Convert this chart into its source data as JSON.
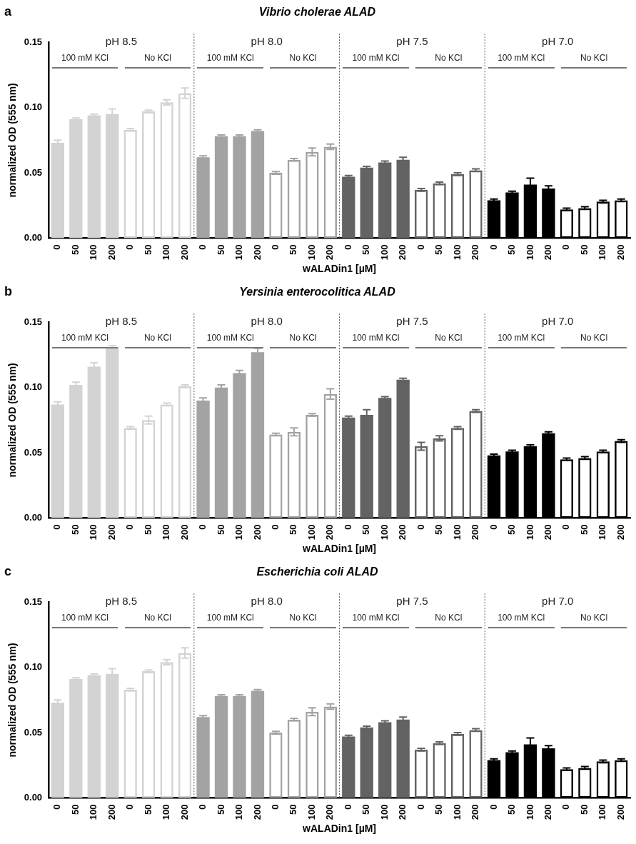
{
  "chart_data": [
    {
      "type": "bar",
      "title": "Vibrio cholerae ALAD",
      "xlabel": "wALADin1 [µM]",
      "ylabel": "normalized OD (555 nm)",
      "annotations": [
        "a",
        "pH 8.5",
        "100 mM KCl",
        "No KCl",
        "pH 8.0",
        "100 mM KCl",
        "No KCl",
        "pH 7.5",
        "100 mM KCl",
        "No KCl",
        "pH 7.0",
        "100 mM KCl",
        "No KCl"
      ],
      "categories": [
        "0",
        "50",
        "100",
        "200",
        "0",
        "50",
        "100",
        "200",
        "0",
        "50",
        "100",
        "200",
        "0",
        "50",
        "100",
        "200",
        "0",
        "50",
        "100",
        "200",
        "0",
        "50",
        "100",
        "200",
        "0",
        "50",
        "100",
        "200",
        "0",
        "50",
        "100",
        "200"
      ],
      "ylim": [
        0,
        0.15
      ],
      "yticks": [
        {
          "value": 0,
          "label": "0.00"
        },
        {
          "value": 0.05,
          "label": "0.05"
        },
        {
          "value": 0.1,
          "label": "0.10"
        },
        {
          "value": 0.15,
          "label": "0.15"
        }
      ],
      "grid": false,
      "legend": false,
      "series": [
        {
          "color": "#d3d3d3",
          "values": [
            0.073,
            0.091,
            0.094,
            0.095,
            null,
            null,
            null,
            null,
            null,
            null,
            null,
            null,
            null,
            null,
            null,
            null,
            null,
            null,
            null,
            null,
            null,
            null,
            null,
            null,
            null,
            null,
            null,
            null,
            null,
            null,
            null,
            null
          ],
          "errors": [
            0.002,
            0.001,
            0.001,
            0.004,
            null,
            null,
            null,
            null,
            null,
            null,
            null,
            null,
            null,
            null,
            null,
            null,
            null,
            null,
            null,
            null,
            null,
            null,
            null,
            null,
            null,
            null,
            null,
            null,
            null,
            null,
            null,
            null
          ]
        },
        {
          "color": "#d3d3d3",
          "values": [
            null,
            null,
            null,
            null,
            0.083,
            0.097,
            0.104,
            0.111,
            null,
            null,
            null,
            null,
            null,
            null,
            null,
            null,
            null,
            null,
            null,
            null,
            null,
            null,
            null,
            null,
            null,
            null,
            null,
            null,
            null,
            null,
            null,
            null
          ],
          "errors": [
            null,
            null,
            null,
            null,
            0.001,
            0.001,
            0.002,
            0.004,
            null,
            null,
            null,
            null,
            null,
            null,
            null,
            null,
            null,
            null,
            null,
            null,
            null,
            null,
            null,
            null,
            null,
            null,
            null,
            null,
            null,
            null,
            null,
            null
          ]
        },
        {
          "color": "#a3a3a5",
          "values": [
            null,
            null,
            null,
            null,
            null,
            null,
            null,
            null,
            0.062,
            0.078,
            0.078,
            0.082,
            null,
            null,
            null,
            null,
            null,
            null,
            null,
            null,
            null,
            null,
            null,
            null,
            null,
            null,
            null,
            null,
            null,
            null,
            null,
            null
          ],
          "errors": [
            null,
            null,
            null,
            null,
            null,
            null,
            null,
            null,
            0.001,
            0.001,
            0.001,
            0.001,
            null,
            null,
            null,
            null,
            null,
            null,
            null,
            null,
            null,
            null,
            null,
            null,
            null,
            null,
            null,
            null,
            null,
            null,
            null,
            null
          ]
        },
        {
          "color": "#a3a3a5",
          "values": [
            null,
            null,
            null,
            null,
            null,
            null,
            null,
            null,
            null,
            null,
            null,
            null,
            0.05,
            0.06,
            0.066,
            0.07,
            null,
            null,
            null,
            null,
            null,
            null,
            null,
            null,
            null,
            null,
            null,
            null,
            null,
            null,
            null,
            null
          ],
          "errors": [
            null,
            null,
            null,
            null,
            null,
            null,
            null,
            null,
            null,
            null,
            null,
            null,
            0.001,
            0.001,
            0.003,
            0.002,
            null,
            null,
            null,
            null,
            null,
            null,
            null,
            null,
            null,
            null,
            null,
            null,
            null,
            null,
            null,
            null
          ]
        },
        {
          "color": "#636363",
          "values": [
            null,
            null,
            null,
            null,
            null,
            null,
            null,
            null,
            null,
            null,
            null,
            null,
            null,
            null,
            null,
            null,
            0.047,
            0.054,
            0.058,
            0.06,
            null,
            null,
            null,
            null,
            null,
            null,
            null,
            null,
            null,
            null,
            null,
            null
          ],
          "errors": [
            null,
            null,
            null,
            null,
            null,
            null,
            null,
            null,
            null,
            null,
            null,
            null,
            null,
            null,
            null,
            null,
            0.001,
            0.001,
            0.001,
            0.002,
            null,
            null,
            null,
            null,
            null,
            null,
            null,
            null,
            null,
            null,
            null,
            null
          ]
        },
        {
          "color": "#636363",
          "values": [
            null,
            null,
            null,
            null,
            null,
            null,
            null,
            null,
            null,
            null,
            null,
            null,
            null,
            null,
            null,
            null,
            null,
            null,
            null,
            null,
            0.037,
            0.042,
            0.049,
            0.052,
            null,
            null,
            null,
            null,
            null,
            null,
            null,
            null
          ],
          "errors": [
            null,
            null,
            null,
            null,
            null,
            null,
            null,
            null,
            null,
            null,
            null,
            null,
            null,
            null,
            null,
            null,
            null,
            null,
            null,
            null,
            0.001,
            0.001,
            0.001,
            0.001,
            null,
            null,
            null,
            null,
            null,
            null,
            null,
            null
          ]
        },
        {
          "color": "#000000",
          "values": [
            null,
            null,
            null,
            null,
            null,
            null,
            null,
            null,
            null,
            null,
            null,
            null,
            null,
            null,
            null,
            null,
            null,
            null,
            null,
            null,
            null,
            null,
            null,
            null,
            0.029,
            0.035,
            0.041,
            0.038,
            null,
            null,
            null,
            null
          ],
          "errors": [
            null,
            null,
            null,
            null,
            null,
            null,
            null,
            null,
            null,
            null,
            null,
            null,
            null,
            null,
            null,
            null,
            null,
            null,
            null,
            null,
            null,
            null,
            null,
            null,
            0.001,
            0.001,
            0.005,
            0.002,
            null,
            null,
            null,
            null
          ]
        },
        {
          "color": "#000000",
          "values": [
            null,
            null,
            null,
            null,
            null,
            null,
            null,
            null,
            null,
            null,
            null,
            null,
            null,
            null,
            null,
            null,
            null,
            null,
            null,
            null,
            null,
            null,
            null,
            null,
            null,
            null,
            null,
            null,
            0.022,
            0.023,
            0.028,
            0.029
          ],
          "errors": [
            null,
            null,
            null,
            null,
            null,
            null,
            null,
            null,
            null,
            null,
            null,
            null,
            null,
            null,
            null,
            null,
            null,
            null,
            null,
            null,
            null,
            null,
            null,
            null,
            null,
            null,
            null,
            null,
            0.001,
            0.001,
            0.001,
            0.001
          ]
        }
      ]
    },
    {
      "type": "bar",
      "title": "Yersinia enterocolitica ALAD",
      "xlabel": "wALADin1 [µM]",
      "ylabel": "normalized OD (555 nm)",
      "annotations": [
        "b",
        "pH 8.5",
        "100 mM KCl",
        "No KCl",
        "pH 8.0",
        "100 mM KCl",
        "No KCl",
        "pH 7.5",
        "100 mM KCl",
        "No KCl",
        "pH 7.0",
        "100 mM KCl",
        "No KCl"
      ],
      "categories": [
        "0",
        "50",
        "100",
        "200",
        "0",
        "50",
        "100",
        "200",
        "0",
        "50",
        "100",
        "200",
        "0",
        "50",
        "100",
        "200",
        "0",
        "50",
        "100",
        "200",
        "0",
        "50",
        "100",
        "200",
        "0",
        "50",
        "100",
        "200",
        "0",
        "50",
        "100",
        "200"
      ],
      "ylim": [
        0,
        0.15
      ],
      "yticks": [
        {
          "value": 0,
          "label": "0.00"
        },
        {
          "value": 0.05,
          "label": "0.05"
        },
        {
          "value": 0.1,
          "label": "0.10"
        },
        {
          "value": 0.15,
          "label": "0.15"
        }
      ],
      "grid": false,
      "legend": false,
      "series": [
        {
          "color": "#d3d3d3",
          "values": [
            0.087,
            0.102,
            0.116,
            0.131,
            null,
            null,
            null,
            null,
            null,
            null,
            null,
            null,
            null,
            null,
            null,
            null,
            null,
            null,
            null,
            null,
            null,
            null,
            null,
            null,
            null,
            null,
            null,
            null,
            null,
            null,
            null,
            null
          ],
          "errors": [
            0.002,
            0.002,
            0.003,
            0.001,
            null,
            null,
            null,
            null,
            null,
            null,
            null,
            null,
            null,
            null,
            null,
            null,
            null,
            null,
            null,
            null,
            null,
            null,
            null,
            null,
            null,
            null,
            null,
            null,
            null,
            null,
            null,
            null
          ]
        },
        {
          "color": "#d3d3d3",
          "values": [
            null,
            null,
            null,
            null,
            0.069,
            0.075,
            0.087,
            0.101,
            null,
            null,
            null,
            null,
            null,
            null,
            null,
            null,
            null,
            null,
            null,
            null,
            null,
            null,
            null,
            null,
            null,
            null,
            null,
            null,
            null,
            null,
            null,
            null
          ],
          "errors": [
            null,
            null,
            null,
            null,
            0.001,
            0.003,
            0.001,
            0.001,
            null,
            null,
            null,
            null,
            null,
            null,
            null,
            null,
            null,
            null,
            null,
            null,
            null,
            null,
            null,
            null,
            null,
            null,
            null,
            null,
            null,
            null,
            null,
            null
          ]
        },
        {
          "color": "#a3a3a5",
          "values": [
            null,
            null,
            null,
            null,
            null,
            null,
            null,
            null,
            0.09,
            0.1,
            0.111,
            0.127,
            null,
            null,
            null,
            null,
            null,
            null,
            null,
            null,
            null,
            null,
            null,
            null,
            null,
            null,
            null,
            null,
            null,
            null,
            null,
            null
          ],
          "errors": [
            null,
            null,
            null,
            null,
            null,
            null,
            null,
            null,
            0.002,
            0.002,
            0.002,
            0.003,
            null,
            null,
            null,
            null,
            null,
            null,
            null,
            null,
            null,
            null,
            null,
            null,
            null,
            null,
            null,
            null,
            null,
            null,
            null,
            null
          ]
        },
        {
          "color": "#a3a3a5",
          "values": [
            null,
            null,
            null,
            null,
            null,
            null,
            null,
            null,
            null,
            null,
            null,
            null,
            0.064,
            0.066,
            0.079,
            0.095,
            null,
            null,
            null,
            null,
            null,
            null,
            null,
            null,
            null,
            null,
            null,
            null,
            null,
            null,
            null,
            null
          ],
          "errors": [
            null,
            null,
            null,
            null,
            null,
            null,
            null,
            null,
            null,
            null,
            null,
            null,
            0.001,
            0.003,
            0.001,
            0.004,
            null,
            null,
            null,
            null,
            null,
            null,
            null,
            null,
            null,
            null,
            null,
            null,
            null,
            null,
            null,
            null
          ]
        },
        {
          "color": "#636363",
          "values": [
            null,
            null,
            null,
            null,
            null,
            null,
            null,
            null,
            null,
            null,
            null,
            null,
            null,
            null,
            null,
            null,
            0.077,
            0.079,
            0.092,
            0.106,
            null,
            null,
            null,
            null,
            null,
            null,
            null,
            null,
            null,
            null,
            null,
            null
          ],
          "errors": [
            null,
            null,
            null,
            null,
            null,
            null,
            null,
            null,
            null,
            null,
            null,
            null,
            null,
            null,
            null,
            null,
            0.001,
            0.004,
            0.001,
            0.001,
            null,
            null,
            null,
            null,
            null,
            null,
            null,
            null,
            null,
            null,
            null,
            null
          ]
        },
        {
          "color": "#636363",
          "values": [
            null,
            null,
            null,
            null,
            null,
            null,
            null,
            null,
            null,
            null,
            null,
            null,
            null,
            null,
            null,
            null,
            null,
            null,
            null,
            null,
            0.055,
            0.061,
            0.069,
            0.082,
            null,
            null,
            null,
            null,
            null,
            null,
            null,
            null
          ],
          "errors": [
            null,
            null,
            null,
            null,
            null,
            null,
            null,
            null,
            null,
            null,
            null,
            null,
            null,
            null,
            null,
            null,
            null,
            null,
            null,
            null,
            0.003,
            0.002,
            0.001,
            0.001,
            null,
            null,
            null,
            null,
            null,
            null,
            null,
            null
          ]
        },
        {
          "color": "#000000",
          "values": [
            null,
            null,
            null,
            null,
            null,
            null,
            null,
            null,
            null,
            null,
            null,
            null,
            null,
            null,
            null,
            null,
            null,
            null,
            null,
            null,
            null,
            null,
            null,
            null,
            0.048,
            0.051,
            0.055,
            0.065,
            null,
            null,
            null,
            null
          ],
          "errors": [
            null,
            null,
            null,
            null,
            null,
            null,
            null,
            null,
            null,
            null,
            null,
            null,
            null,
            null,
            null,
            null,
            null,
            null,
            null,
            null,
            null,
            null,
            null,
            null,
            0.001,
            0.001,
            0.001,
            0.001,
            null,
            null,
            null,
            null
          ]
        },
        {
          "color": "#000000",
          "values": [
            null,
            null,
            null,
            null,
            null,
            null,
            null,
            null,
            null,
            null,
            null,
            null,
            null,
            null,
            null,
            null,
            null,
            null,
            null,
            null,
            null,
            null,
            null,
            null,
            null,
            null,
            null,
            null,
            0.045,
            0.046,
            0.051,
            0.059
          ],
          "errors": [
            null,
            null,
            null,
            null,
            null,
            null,
            null,
            null,
            null,
            null,
            null,
            null,
            null,
            null,
            null,
            null,
            null,
            null,
            null,
            null,
            null,
            null,
            null,
            null,
            null,
            null,
            null,
            null,
            0.001,
            0.001,
            0.001,
            0.001
          ]
        }
      ]
    },
    {
      "type": "bar",
      "title": "Escherichia coli ALAD",
      "xlabel": "wALADin1 [µM]",
      "ylabel": "normalized OD (555 nm)",
      "annotations": [
        "c",
        "pH 8.5",
        "100 mM KCl",
        "No KCl",
        "pH 8.0",
        "100 mM KCl",
        "No KCl",
        "pH 7.5",
        "100 mM KCl",
        "No KCl",
        "pH 7.0",
        "100 mM KCl",
        "No KCl"
      ],
      "categories": [
        "0",
        "50",
        "100",
        "200",
        "0",
        "50",
        "100",
        "200",
        "0",
        "50",
        "100",
        "200",
        "0",
        "50",
        "100",
        "200",
        "0",
        "50",
        "100",
        "200",
        "0",
        "50",
        "100",
        "200",
        "0",
        "50",
        "100",
        "200",
        "0",
        "50",
        "100",
        "200"
      ],
      "ylim": [
        0,
        0.15
      ],
      "yticks": [
        {
          "value": 0,
          "label": "0.00"
        },
        {
          "value": 0.05,
          "label": "0.05"
        },
        {
          "value": 0.1,
          "label": "0.10"
        },
        {
          "value": 0.15,
          "label": "0.15"
        }
      ],
      "grid": false,
      "legend": false,
      "series": [
        {
          "color": "#d3d3d3",
          "values": [
            0.073,
            0.091,
            0.094,
            0.095,
            null,
            null,
            null,
            null,
            null,
            null,
            null,
            null,
            null,
            null,
            null,
            null,
            null,
            null,
            null,
            null,
            null,
            null,
            null,
            null,
            null,
            null,
            null,
            null,
            null,
            null,
            null,
            null
          ],
          "errors": [
            0.002,
            0.001,
            0.001,
            0.004,
            null,
            null,
            null,
            null,
            null,
            null,
            null,
            null,
            null,
            null,
            null,
            null,
            null,
            null,
            null,
            null,
            null,
            null,
            null,
            null,
            null,
            null,
            null,
            null,
            null,
            null,
            null,
            null
          ]
        },
        {
          "color": "#d3d3d3",
          "values": [
            null,
            null,
            null,
            null,
            0.083,
            0.097,
            0.104,
            0.111,
            null,
            null,
            null,
            null,
            null,
            null,
            null,
            null,
            null,
            null,
            null,
            null,
            null,
            null,
            null,
            null,
            null,
            null,
            null,
            null,
            null,
            null,
            null,
            null
          ],
          "errors": [
            null,
            null,
            null,
            null,
            0.001,
            0.001,
            0.002,
            0.004,
            null,
            null,
            null,
            null,
            null,
            null,
            null,
            null,
            null,
            null,
            null,
            null,
            null,
            null,
            null,
            null,
            null,
            null,
            null,
            null,
            null,
            null,
            null,
            null
          ]
        },
        {
          "color": "#a3a3a5",
          "values": [
            null,
            null,
            null,
            null,
            null,
            null,
            null,
            null,
            0.062,
            0.078,
            0.078,
            0.082,
            null,
            null,
            null,
            null,
            null,
            null,
            null,
            null,
            null,
            null,
            null,
            null,
            null,
            null,
            null,
            null,
            null,
            null,
            null,
            null
          ],
          "errors": [
            null,
            null,
            null,
            null,
            null,
            null,
            null,
            null,
            0.001,
            0.001,
            0.001,
            0.001,
            null,
            null,
            null,
            null,
            null,
            null,
            null,
            null,
            null,
            null,
            null,
            null,
            null,
            null,
            null,
            null,
            null,
            null,
            null,
            null
          ]
        },
        {
          "color": "#a3a3a5",
          "values": [
            null,
            null,
            null,
            null,
            null,
            null,
            null,
            null,
            null,
            null,
            null,
            null,
            0.05,
            0.06,
            0.066,
            0.07,
            null,
            null,
            null,
            null,
            null,
            null,
            null,
            null,
            null,
            null,
            null,
            null,
            null,
            null,
            null,
            null
          ],
          "errors": [
            null,
            null,
            null,
            null,
            null,
            null,
            null,
            null,
            null,
            null,
            null,
            null,
            0.001,
            0.001,
            0.003,
            0.002,
            null,
            null,
            null,
            null,
            null,
            null,
            null,
            null,
            null,
            null,
            null,
            null,
            null,
            null,
            null,
            null
          ]
        },
        {
          "color": "#636363",
          "values": [
            null,
            null,
            null,
            null,
            null,
            null,
            null,
            null,
            null,
            null,
            null,
            null,
            null,
            null,
            null,
            null,
            0.047,
            0.054,
            0.058,
            0.06,
            null,
            null,
            null,
            null,
            null,
            null,
            null,
            null,
            null,
            null,
            null,
            null
          ],
          "errors": [
            null,
            null,
            null,
            null,
            null,
            null,
            null,
            null,
            null,
            null,
            null,
            null,
            null,
            null,
            null,
            null,
            0.001,
            0.001,
            0.001,
            0.002,
            null,
            null,
            null,
            null,
            null,
            null,
            null,
            null,
            null,
            null,
            null,
            null
          ]
        },
        {
          "color": "#636363",
          "values": [
            null,
            null,
            null,
            null,
            null,
            null,
            null,
            null,
            null,
            null,
            null,
            null,
            null,
            null,
            null,
            null,
            null,
            null,
            null,
            null,
            0.037,
            0.042,
            0.049,
            0.052,
            null,
            null,
            null,
            null,
            null,
            null,
            null,
            null
          ],
          "errors": [
            null,
            null,
            null,
            null,
            null,
            null,
            null,
            null,
            null,
            null,
            null,
            null,
            null,
            null,
            null,
            null,
            null,
            null,
            null,
            null,
            0.001,
            0.001,
            0.001,
            0.001,
            null,
            null,
            null,
            null,
            null,
            null,
            null,
            null
          ]
        },
        {
          "color": "#000000",
          "values": [
            null,
            null,
            null,
            null,
            null,
            null,
            null,
            null,
            null,
            null,
            null,
            null,
            null,
            null,
            null,
            null,
            null,
            null,
            null,
            null,
            null,
            null,
            null,
            null,
            0.029,
            0.035,
            0.041,
            0.038,
            null,
            null,
            null,
            null
          ],
          "errors": [
            null,
            null,
            null,
            null,
            null,
            null,
            null,
            null,
            null,
            null,
            null,
            null,
            null,
            null,
            null,
            null,
            null,
            null,
            null,
            null,
            null,
            null,
            null,
            null,
            0.001,
            0.001,
            0.005,
            0.002,
            null,
            null,
            null,
            null
          ]
        },
        {
          "color": "#000000",
          "values": [
            null,
            null,
            null,
            null,
            null,
            null,
            null,
            null,
            null,
            null,
            null,
            null,
            null,
            null,
            null,
            null,
            null,
            null,
            null,
            null,
            null,
            null,
            null,
            null,
            null,
            null,
            null,
            null,
            0.022,
            0.023,
            0.028,
            0.029
          ],
          "errors": [
            null,
            null,
            null,
            null,
            null,
            null,
            null,
            null,
            null,
            null,
            null,
            null,
            null,
            null,
            null,
            null,
            null,
            null,
            null,
            null,
            null,
            null,
            null,
            null,
            null,
            null,
            null,
            null,
            0.001,
            0.001,
            0.001,
            0.001
          ]
        }
      ]
    }
  ]
}
